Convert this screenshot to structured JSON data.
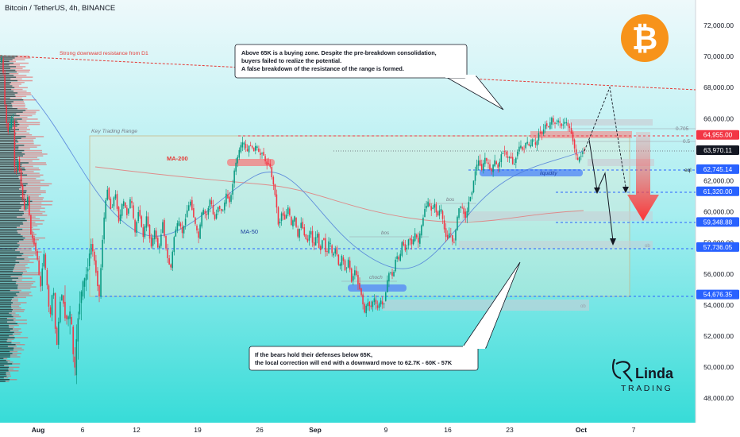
{
  "header": {
    "title": "Bitcoin / TetherUS, 4h, BINANCE"
  },
  "colors": {
    "up": "#089981",
    "down": "#f23645",
    "accent_blue": "#2962ff",
    "resistance": "#e53935",
    "bg_top": "#e8f8fb",
    "bg_bottom": "#3fe0dc"
  },
  "chart_data": {
    "type": "candlestick",
    "symbol": "BTCUSDT",
    "timeframe": "4h",
    "exchange": "BINANCE",
    "ylim": [
      47500,
      73500
    ],
    "y_ticks": [
      48000,
      50000,
      52000,
      54000,
      56000,
      58000,
      60000,
      62000,
      64000,
      66000,
      68000,
      70000,
      72000
    ],
    "x_ticks": [
      "Aug",
      "6",
      "12",
      "19",
      "26",
      "Sep",
      "9",
      "16",
      "23",
      "Oct",
      "7"
    ],
    "price_labels": [
      {
        "value": 64955.0,
        "text": "64,955.00",
        "color": "#f23645"
      },
      {
        "value": 63970.11,
        "text": "63,970.11",
        "color": "#131722"
      },
      {
        "value": 62745.14,
        "text": "62,745.14",
        "color": "#2962ff"
      },
      {
        "value": 61320.0,
        "text": "61,320.00",
        "color": "#2962ff"
      },
      {
        "value": 59348.88,
        "text": "59,348.88",
        "color": "#2962ff"
      },
      {
        "value": 57736.05,
        "text": "57,736.05",
        "color": "#2962ff"
      },
      {
        "value": 54676.35,
        "text": "54,676.35",
        "color": "#2962ff"
      }
    ],
    "path": [
      [
        0,
        69500
      ],
      [
        4,
        70000
      ],
      [
        8,
        66000
      ],
      [
        12,
        65000
      ],
      [
        17,
        66500
      ],
      [
        20,
        62000
      ],
      [
        24,
        63500
      ],
      [
        28,
        61500
      ],
      [
        32,
        60000
      ],
      [
        36,
        61000
      ],
      [
        40,
        58500
      ],
      [
        44,
        58000
      ],
      [
        48,
        57000
      ],
      [
        52,
        55000
      ],
      [
        56,
        57500
      ],
      [
        60,
        55500
      ],
      [
        64,
        53000
      ],
      [
        68,
        55500
      ],
      [
        72,
        51000
      ],
      [
        78,
        55000
      ],
      [
        84,
        53000
      ],
      [
        90,
        53500
      ],
      [
        95,
        49500
      ],
      [
        100,
        53800
      ],
      [
        105,
        55200
      ],
      [
        110,
        56000
      ],
      [
        116,
        58000
      ],
      [
        121,
        56500
      ],
      [
        126,
        54500
      ],
      [
        131,
        59000
      ],
      [
        136,
        61600
      ],
      [
        141,
        60000
      ],
      [
        146,
        61300
      ],
      [
        151,
        59300
      ],
      [
        156,
        60800
      ],
      [
        161,
        59800
      ],
      [
        166,
        61000
      ],
      [
        171,
        58600
      ],
      [
        176,
        60300
      ],
      [
        181,
        58300
      ],
      [
        186,
        59800
      ],
      [
        191,
        57700
      ],
      [
        196,
        58800
      ],
      [
        201,
        57400
      ],
      [
        206,
        59400
      ],
      [
        211,
        57200
      ],
      [
        216,
        56300
      ],
      [
        221,
        58700
      ],
      [
        226,
        59400
      ],
      [
        231,
        58600
      ],
      [
        236,
        60000
      ],
      [
        241,
        60700
      ],
      [
        246,
        59400
      ],
      [
        251,
        58300
      ],
      [
        256,
        60200
      ],
      [
        261,
        59700
      ],
      [
        266,
        60900
      ],
      [
        271,
        59400
      ],
      [
        276,
        60400
      ],
      [
        281,
        59900
      ],
      [
        286,
        61100
      ],
      [
        291,
        60600
      ],
      [
        296,
        62600
      ],
      [
        300,
        63500
      ],
      [
        304,
        64200
      ],
      [
        308,
        64500
      ],
      [
        312,
        63800
      ],
      [
        316,
        64400
      ],
      [
        320,
        63900
      ],
      [
        324,
        64300
      ],
      [
        328,
        63600
      ],
      [
        332,
        63900
      ],
      [
        336,
        63000
      ],
      [
        340,
        63200
      ],
      [
        344,
        62100
      ],
      [
        348,
        61000
      ],
      [
        352,
        59000
      ],
      [
        356,
        60000
      ],
      [
        360,
        59500
      ],
      [
        364,
        60300
      ],
      [
        368,
        59100
      ],
      [
        372,
        59700
      ],
      [
        376,
        58300
      ],
      [
        380,
        59400
      ],
      [
        384,
        58600
      ],
      [
        388,
        58000
      ],
      [
        392,
        58900
      ],
      [
        396,
        57600
      ],
      [
        400,
        58800
      ],
      [
        404,
        57300
      ],
      [
        408,
        58600
      ],
      [
        412,
        57100
      ],
      [
        416,
        58300
      ],
      [
        420,
        57000
      ],
      [
        424,
        57800
      ],
      [
        428,
        56300
      ],
      [
        432,
        57200
      ],
      [
        436,
        56200
      ],
      [
        440,
        56900
      ],
      [
        444,
        55500
      ],
      [
        448,
        56300
      ],
      [
        452,
        55400
      ],
      [
        456,
        54700
      ],
      [
        460,
        53500
      ],
      [
        464,
        54200
      ],
      [
        468,
        53800
      ],
      [
        472,
        54500
      ],
      [
        476,
        53700
      ],
      [
        480,
        54300
      ],
      [
        484,
        53900
      ],
      [
        488,
        55300
      ],
      [
        492,
        56300
      ],
      [
        496,
        55700
      ],
      [
        500,
        57300
      ],
      [
        504,
        56800
      ],
      [
        508,
        58200
      ],
      [
        512,
        57400
      ],
      [
        516,
        58400
      ],
      [
        520,
        57900
      ],
      [
        524,
        58600
      ],
      [
        528,
        58000
      ],
      [
        532,
        59100
      ],
      [
        536,
        60200
      ],
      [
        540,
        60600
      ],
      [
        544,
        60100
      ],
      [
        548,
        60500
      ],
      [
        552,
        59700
      ],
      [
        556,
        60300
      ],
      [
        560,
        59000
      ],
      [
        564,
        58200
      ],
      [
        568,
        58800
      ],
      [
        572,
        57700
      ],
      [
        576,
        59300
      ],
      [
        580,
        60500
      ],
      [
        584,
        60100
      ],
      [
        588,
        59600
      ],
      [
        592,
        60800
      ],
      [
        596,
        61400
      ],
      [
        600,
        62800
      ],
      [
        604,
        63300
      ],
      [
        608,
        62700
      ],
      [
        612,
        63500
      ],
      [
        616,
        63000
      ],
      [
        620,
        62600
      ],
      [
        624,
        63300
      ],
      [
        628,
        62800
      ],
      [
        632,
        63600
      ],
      [
        636,
        64000
      ],
      [
        640,
        63400
      ],
      [
        644,
        63600
      ],
      [
        648,
        62900
      ],
      [
        652,
        63800
      ],
      [
        656,
        64300
      ],
      [
        660,
        63900
      ],
      [
        664,
        64600
      ],
      [
        668,
        64100
      ],
      [
        672,
        64700
      ],
      [
        676,
        64200
      ],
      [
        680,
        65200
      ],
      [
        684,
        65000
      ],
      [
        688,
        65700
      ],
      [
        692,
        65400
      ],
      [
        696,
        66000
      ],
      [
        700,
        65600
      ],
      [
        704,
        65900
      ],
      [
        708,
        65500
      ],
      [
        712,
        65800
      ],
      [
        716,
        65600
      ],
      [
        720,
        65200
      ],
      [
        724,
        64300
      ],
      [
        728,
        63200
      ],
      [
        732,
        63600
      ],
      [
        736,
        64000
      ]
    ]
  },
  "annotations": {
    "resistance_label": "Strong downward resistance from D1",
    "range_label": "Key Trading Range",
    "ma200_label": "MA-200",
    "ma50_label": "MA-50",
    "bos_label": "bos",
    "choch_label": "choch",
    "liquidity_label": "liquidity",
    "ob_label": "ob",
    "eql_label": "eql",
    "fib_0705": "0.705",
    "fib_05": "0.5",
    "callout_top": [
      "Above 65K is a buying zone. Despite the pre-breakdown consolidation,",
      "buyers failed to realize the potential.",
      "A false breakdown of the resistance of the range is formed."
    ],
    "callout_bottom": [
      "If the bears hold their defenses below 65K,",
      "the local correction will end with a downward move to 62.7K - 60K - 57K"
    ]
  },
  "logo": {
    "brand_line1": "Linda",
    "brand_line2": "TRADING",
    "symbol": "₿"
  }
}
